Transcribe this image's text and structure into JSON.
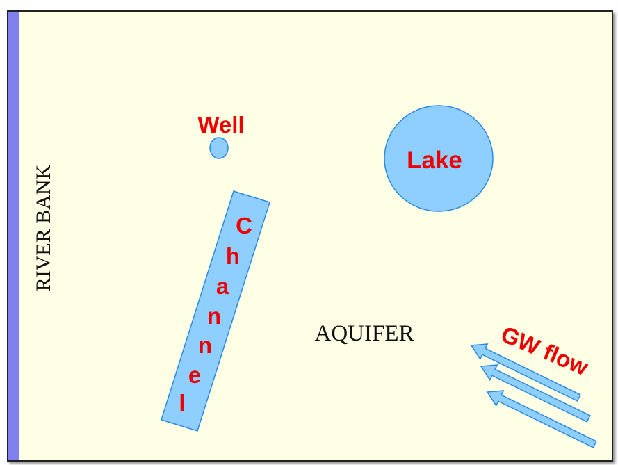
{
  "labels": {
    "river_bank": "RIVER BANK",
    "aquifer": "AQUIFER",
    "well": "Well",
    "lake": "Lake",
    "channel_letters": [
      "C",
      "h",
      "a",
      "n",
      "n",
      "e",
      "l"
    ],
    "gw_flow": "GW flow"
  },
  "colors": {
    "background": "#ffffe6",
    "river": "#7f7ff0",
    "water_fill": "#8fcfff",
    "water_stroke": "#2a8ae0",
    "label_red": "#ee0000",
    "border": "#222222"
  }
}
